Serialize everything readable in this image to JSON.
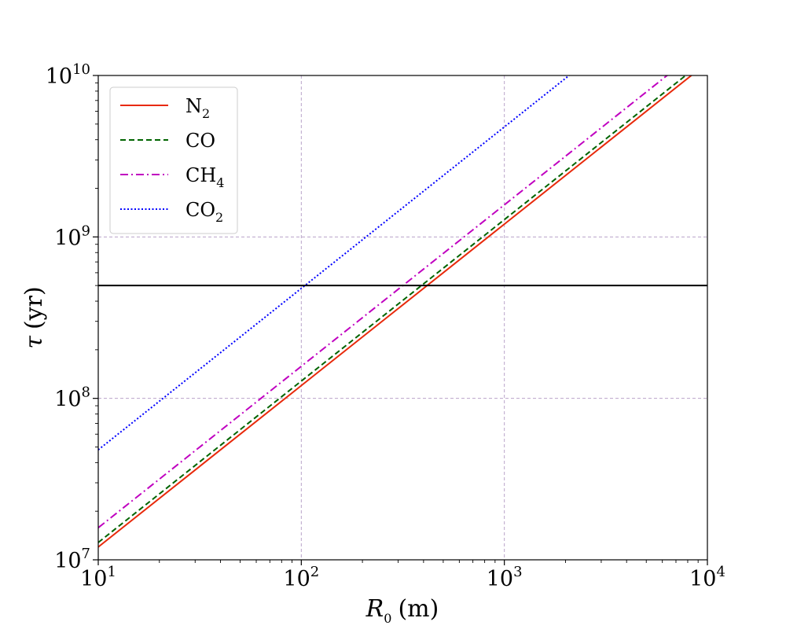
{
  "chart_data": {
    "type": "line",
    "xscale": "log",
    "yscale": "log",
    "xlim": [
      10,
      10000
    ],
    "ylim": [
      10000000,
      10000000000
    ],
    "xlabel": {
      "main": "R",
      "sub": "0",
      "unit": "(m)"
    },
    "ylabel": {
      "main": "τ",
      "unit": "(yr)"
    },
    "xticks": [
      {
        "value": 10,
        "base": "10",
        "exp": "1"
      },
      {
        "value": 100,
        "base": "10",
        "exp": "2"
      },
      {
        "value": 1000,
        "base": "10",
        "exp": "3"
      },
      {
        "value": 10000,
        "base": "10",
        "exp": "4"
      }
    ],
    "yticks": [
      {
        "value": 10000000,
        "base": "10",
        "exp": "7"
      },
      {
        "value": 100000000,
        "base": "10",
        "exp": "8"
      },
      {
        "value": 1000000000,
        "base": "10",
        "exp": "9"
      },
      {
        "value": 10000000000,
        "base": "10",
        "exp": "10"
      }
    ],
    "grid": true,
    "legend_position": "top-left",
    "series": [
      {
        "name": "N",
        "name_sub": "2",
        "color": "#e8290b",
        "dash": "solid",
        "x": [
          10,
          10000
        ],
        "y": [
          12000000,
          12000000000
        ]
      },
      {
        "name": "CO",
        "name_sub": "",
        "color": "#006400",
        "dash": "dashed",
        "x": [
          10,
          10000
        ],
        "y": [
          12800000,
          12800000000
        ]
      },
      {
        "name": "CH",
        "name_sub": "4",
        "color": "#c000c0",
        "dash": "dashdot",
        "x": [
          10,
          10000
        ],
        "y": [
          15800000,
          15800000000
        ]
      },
      {
        "name": "CO",
        "name_sub": "2",
        "color": "#0000ff",
        "dash": "dotted",
        "x": [
          10,
          10000
        ],
        "y": [
          48000000,
          48000000000
        ]
      }
    ],
    "hlines": [
      {
        "y": 500000000,
        "color": "#000000"
      }
    ]
  }
}
